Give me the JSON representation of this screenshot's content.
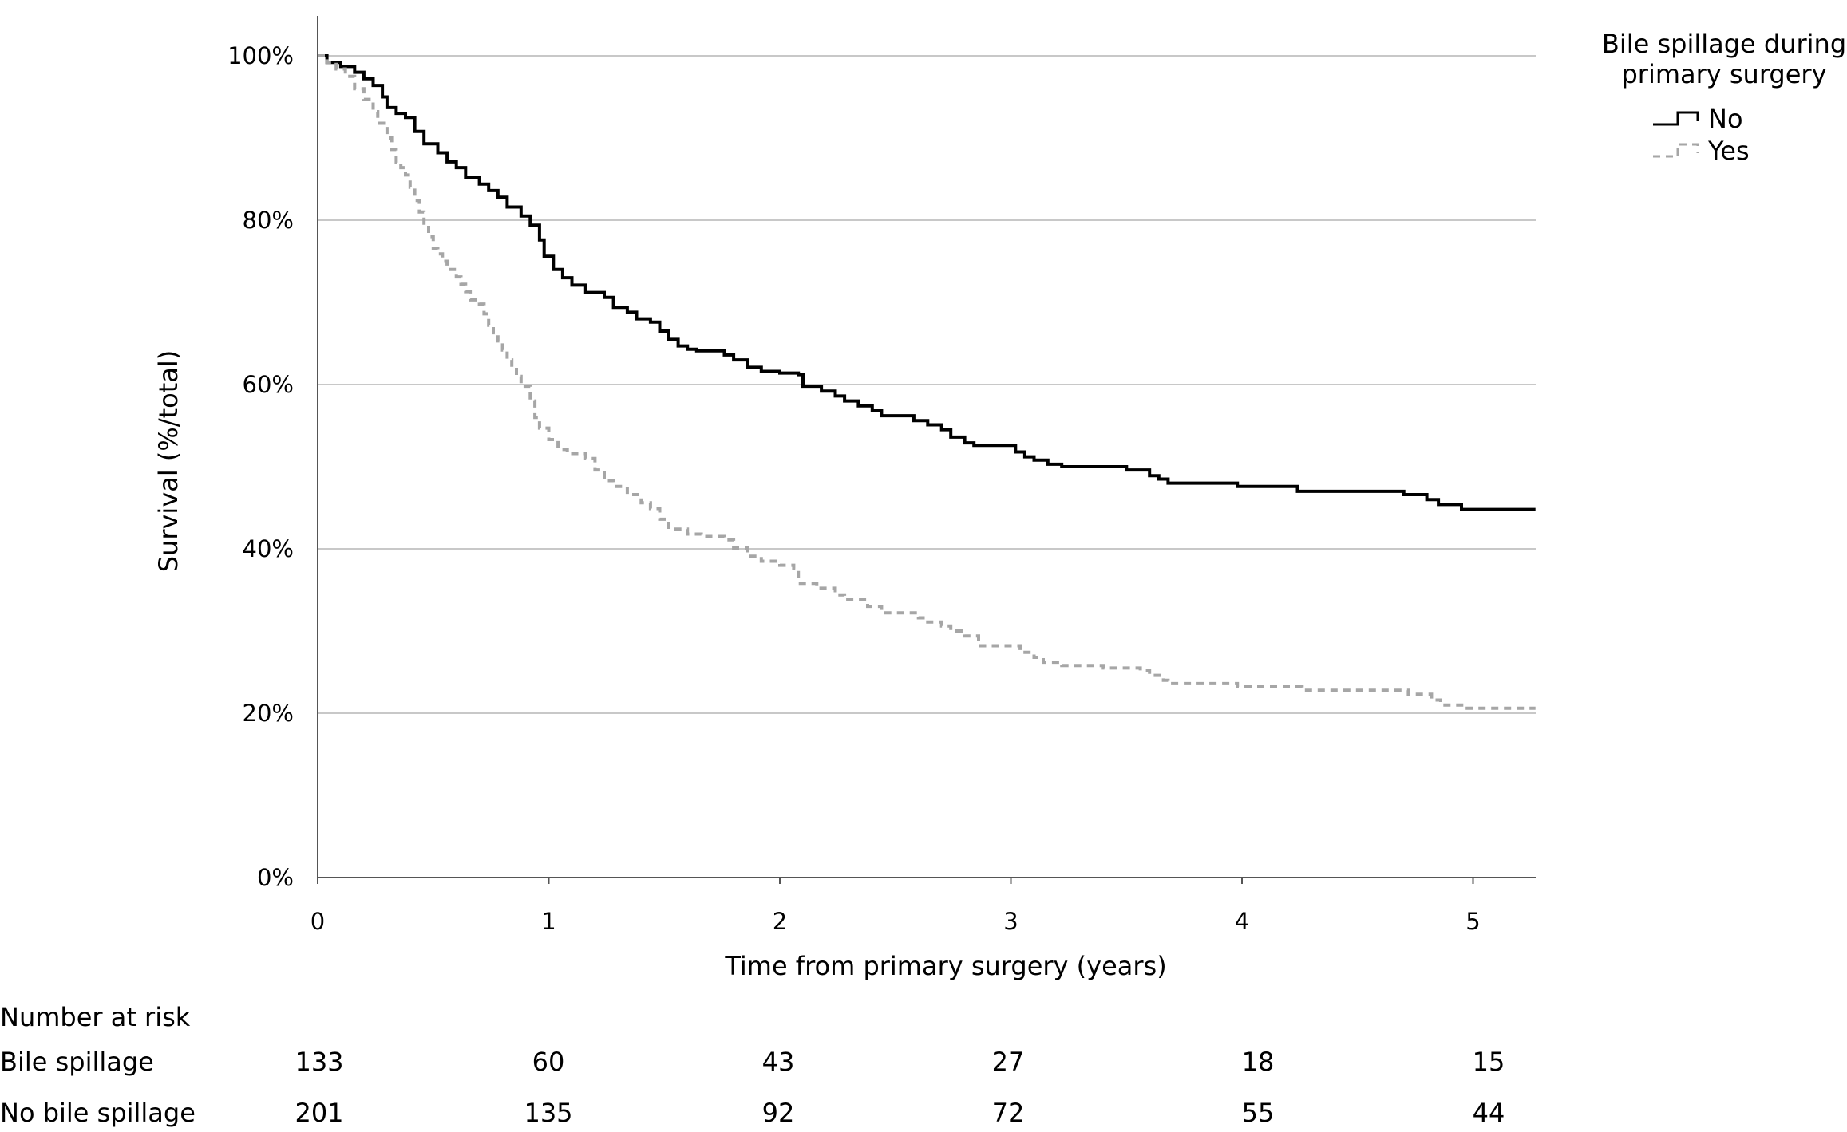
{
  "chart_data": {
    "type": "line",
    "subtype": "kaplan-meier step",
    "ylabel": "Survival (%/total)",
    "xlabel": "Time from primary surgery (years)",
    "xlim": [
      0,
      5.27
    ],
    "ylim": [
      0,
      100
    ],
    "x_ticks": [
      "0",
      "1",
      "2",
      "3",
      "4",
      "5"
    ],
    "y_ticks": [
      "0%",
      "20%",
      "40%",
      "60%",
      "80%",
      "100%"
    ],
    "grid": "horizontal",
    "legend": {
      "title": "Bile spillage during primary surgery",
      "title_lines": [
        "Bile spillage during",
        "primary surgery"
      ],
      "placement": "top-right",
      "entries": [
        "No",
        "Yes"
      ]
    },
    "series": [
      {
        "name": "No",
        "color": "#000000",
        "style": "solid",
        "points": [
          [
            0,
            100
          ],
          [
            0.04,
            99.2
          ],
          [
            0.1,
            98.7
          ],
          [
            0.16,
            98
          ],
          [
            0.2,
            97.2
          ],
          [
            0.24,
            96.4
          ],
          [
            0.28,
            95
          ],
          [
            0.3,
            93.7
          ],
          [
            0.34,
            93
          ],
          [
            0.38,
            92.5
          ],
          [
            0.42,
            90.8
          ],
          [
            0.46,
            89.3
          ],
          [
            0.52,
            88.2
          ],
          [
            0.56,
            87.1
          ],
          [
            0.6,
            86.4
          ],
          [
            0.64,
            85.2
          ],
          [
            0.7,
            84.4
          ],
          [
            0.74,
            83.6
          ],
          [
            0.78,
            82.8
          ],
          [
            0.82,
            81.6
          ],
          [
            0.88,
            80.5
          ],
          [
            0.92,
            79.4
          ],
          [
            0.96,
            77.6
          ],
          [
            0.98,
            75.6
          ],
          [
            1.02,
            74
          ],
          [
            1.06,
            73
          ],
          [
            1.1,
            72.1
          ],
          [
            1.16,
            71.2
          ],
          [
            1.24,
            70.6
          ],
          [
            1.28,
            69.4
          ],
          [
            1.34,
            68.8
          ],
          [
            1.38,
            68
          ],
          [
            1.44,
            67.6
          ],
          [
            1.48,
            66.5
          ],
          [
            1.52,
            65.5
          ],
          [
            1.56,
            64.7
          ],
          [
            1.6,
            64.3
          ],
          [
            1.64,
            64.1
          ],
          [
            1.76,
            63.6
          ],
          [
            1.8,
            63
          ],
          [
            1.86,
            62.1
          ],
          [
            1.92,
            61.6
          ],
          [
            2.0,
            61.4
          ],
          [
            2.08,
            61.2
          ],
          [
            2.1,
            59.8
          ],
          [
            2.18,
            59.2
          ],
          [
            2.24,
            58.6
          ],
          [
            2.28,
            58
          ],
          [
            2.34,
            57.4
          ],
          [
            2.4,
            56.8
          ],
          [
            2.44,
            56.2
          ],
          [
            2.58,
            55.6
          ],
          [
            2.64,
            55.1
          ],
          [
            2.7,
            54.5
          ],
          [
            2.74,
            53.6
          ],
          [
            2.8,
            52.9
          ],
          [
            2.84,
            52.6
          ],
          [
            3.02,
            51.8
          ],
          [
            3.06,
            51.2
          ],
          [
            3.1,
            50.8
          ],
          [
            3.16,
            50.3
          ],
          [
            3.22,
            50.0
          ],
          [
            3.5,
            49.6
          ],
          [
            3.6,
            48.9
          ],
          [
            3.64,
            48.5
          ],
          [
            3.68,
            48.0
          ],
          [
            3.98,
            47.6
          ],
          [
            4.24,
            47.0
          ],
          [
            4.7,
            46.6
          ],
          [
            4.8,
            46.0
          ],
          [
            4.85,
            45.4
          ],
          [
            4.95,
            44.8
          ],
          [
            5.27,
            44.8
          ]
        ]
      },
      {
        "name": "Yes",
        "color": "#a6a6a6",
        "style": "dashed",
        "points": [
          [
            0,
            100
          ],
          [
            0.04,
            99.2
          ],
          [
            0.08,
            98.4
          ],
          [
            0.12,
            97.5
          ],
          [
            0.16,
            96
          ],
          [
            0.2,
            94.7
          ],
          [
            0.24,
            93.2
          ],
          [
            0.26,
            91.8
          ],
          [
            0.3,
            90
          ],
          [
            0.32,
            88.6
          ],
          [
            0.34,
            87
          ],
          [
            0.36,
            86.4
          ],
          [
            0.38,
            85.5
          ],
          [
            0.4,
            84
          ],
          [
            0.42,
            82.4
          ],
          [
            0.44,
            81
          ],
          [
            0.46,
            79.4
          ],
          [
            0.48,
            78
          ],
          [
            0.5,
            76.6
          ],
          [
            0.52,
            75.9
          ],
          [
            0.54,
            75
          ],
          [
            0.56,
            74
          ],
          [
            0.6,
            73.1
          ],
          [
            0.62,
            72.2
          ],
          [
            0.64,
            71.3
          ],
          [
            0.66,
            70.3
          ],
          [
            0.7,
            69.8
          ],
          [
            0.72,
            68.6
          ],
          [
            0.74,
            67.2
          ],
          [
            0.76,
            66.3
          ],
          [
            0.78,
            65.3
          ],
          [
            0.8,
            64.2
          ],
          [
            0.82,
            63
          ],
          [
            0.84,
            62.1
          ],
          [
            0.86,
            61
          ],
          [
            0.88,
            59.8
          ],
          [
            0.92,
            58
          ],
          [
            0.94,
            56
          ],
          [
            0.96,
            54.7
          ],
          [
            1.0,
            53.3
          ],
          [
            1.04,
            52.1
          ],
          [
            1.08,
            51.6
          ],
          [
            1.16,
            51
          ],
          [
            1.2,
            49.6
          ],
          [
            1.24,
            48.3
          ],
          [
            1.28,
            47.6
          ],
          [
            1.34,
            46.6
          ],
          [
            1.4,
            45.6
          ],
          [
            1.44,
            44.9
          ],
          [
            1.48,
            43.6
          ],
          [
            1.52,
            42.4
          ],
          [
            1.6,
            41.8
          ],
          [
            1.66,
            41.5
          ],
          [
            1.76,
            41.1
          ],
          [
            1.8,
            40.1
          ],
          [
            1.86,
            39.1
          ],
          [
            1.92,
            38.5
          ],
          [
            2.0,
            38.0
          ],
          [
            2.06,
            37.6
          ],
          [
            2.08,
            35.8
          ],
          [
            2.16,
            35.2
          ],
          [
            2.24,
            34.4
          ],
          [
            2.28,
            33.8
          ],
          [
            2.38,
            33.0
          ],
          [
            2.44,
            32.2
          ],
          [
            2.6,
            31.6
          ],
          [
            2.64,
            31.1
          ],
          [
            2.7,
            30.6
          ],
          [
            2.74,
            30.0
          ],
          [
            2.8,
            29.4
          ],
          [
            2.86,
            28.2
          ],
          [
            3.04,
            27.4
          ],
          [
            3.1,
            26.8
          ],
          [
            3.14,
            26.2
          ],
          [
            3.22,
            25.8
          ],
          [
            3.4,
            25.5
          ],
          [
            3.56,
            25.2
          ],
          [
            3.6,
            24.6
          ],
          [
            3.66,
            24.0
          ],
          [
            3.68,
            23.6
          ],
          [
            3.98,
            23.2
          ],
          [
            4.26,
            22.8
          ],
          [
            4.72,
            22.3
          ],
          [
            4.82,
            21.6
          ],
          [
            4.86,
            21.0
          ],
          [
            4.96,
            20.6
          ],
          [
            5.27,
            20.6
          ]
        ]
      }
    ]
  },
  "risk_table": {
    "heading": "Number at risk",
    "rows": [
      {
        "label": "Bile spillage",
        "values": [
          "133",
          "60",
          "43",
          "27",
          "18",
          "15"
        ]
      },
      {
        "label": "No bile spillage",
        "values": [
          "201",
          "135",
          "92",
          "72",
          "55",
          "44"
        ]
      }
    ]
  }
}
